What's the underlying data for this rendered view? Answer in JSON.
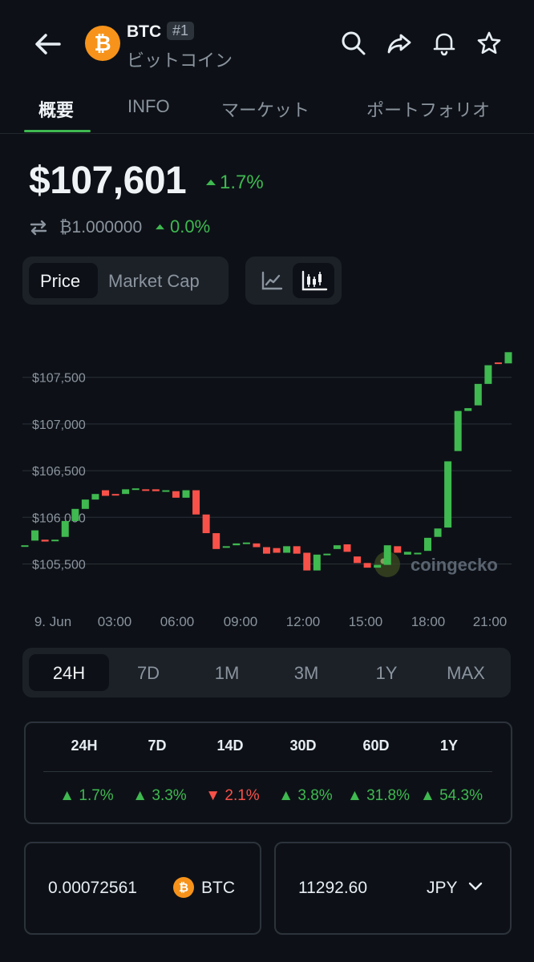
{
  "header": {
    "coin_logo": "₿",
    "symbol": "BTC",
    "rank": "#1",
    "name_jp": "ビットコイン",
    "icons": [
      "back-arrow-icon",
      "search-icon",
      "share-icon",
      "bell-icon",
      "star-icon"
    ]
  },
  "tabs": [
    {
      "label": "概要",
      "active": true
    },
    {
      "label": "INFO"
    },
    {
      "label": "マーケット"
    },
    {
      "label": "ポートフォリオ"
    }
  ],
  "price": {
    "value": "$107,601",
    "change": "1.7%",
    "btc_value": "₿1.000000",
    "btc_change": "0.0%"
  },
  "toggles": {
    "price_label": "Price",
    "market_cap_label": "Market Cap",
    "active_chart_type": "candlestick"
  },
  "colors": {
    "up": "#3fb950",
    "down": "#f85149",
    "coin": "#f7931a",
    "background": "#0d1117"
  },
  "chart_data": {
    "type": "candlestick",
    "ylabels": [
      "$107,500",
      "$107,000",
      "$106,500",
      "$106,000",
      "$105,500"
    ],
    "yticks": [
      107500,
      107000,
      106500,
      106000,
      105500
    ],
    "xlabels": [
      "9. Jun",
      "03:00",
      "06:00",
      "09:00",
      "12:00",
      "15:00",
      "18:00",
      "21:00"
    ],
    "ylim": [
      105100,
      107850
    ],
    "watermark": "coingecko",
    "candles": [
      [
        105700,
        105700
      ],
      [
        105750,
        105860
      ],
      [
        105760,
        105740
      ],
      [
        105760,
        105760
      ],
      [
        105790,
        105960
      ],
      [
        105960,
        106090
      ],
      [
        106090,
        106190
      ],
      [
        106190,
        106250
      ],
      [
        106290,
        106230
      ],
      [
        106250,
        106240
      ],
      [
        106250,
        106300
      ],
      [
        106300,
        106310
      ],
      [
        106300,
        106290
      ],
      [
        106300,
        106280
      ],
      [
        106290,
        106290
      ],
      [
        106280,
        106210
      ],
      [
        106210,
        106290
      ],
      [
        106290,
        106030
      ],
      [
        106030,
        105830
      ],
      [
        105830,
        105660
      ],
      [
        105690,
        105690
      ],
      [
        105700,
        105720
      ],
      [
        105720,
        105730
      ],
      [
        105720,
        105680
      ],
      [
        105680,
        105610
      ],
      [
        105670,
        105620
      ],
      [
        105620,
        105690
      ],
      [
        105690,
        105610
      ],
      [
        105620,
        105430
      ],
      [
        105430,
        105600
      ],
      [
        105600,
        105610
      ],
      [
        105660,
        105700
      ],
      [
        105710,
        105630
      ],
      [
        105580,
        105510
      ],
      [
        105510,
        105460
      ],
      [
        105460,
        105490
      ],
      [
        105490,
        105700
      ],
      [
        105690,
        105620
      ],
      [
        105600,
        105630
      ],
      [
        105620,
        105620
      ],
      [
        105640,
        105780
      ],
      [
        105790,
        105880
      ],
      [
        105890,
        106600
      ],
      [
        106710,
        107140
      ],
      [
        107140,
        107170
      ],
      [
        107200,
        107430
      ],
      [
        107430,
        107630
      ],
      [
        107660,
        107650
      ],
      [
        107650,
        107770
      ]
    ]
  },
  "ranges": [
    {
      "label": "24H",
      "active": true
    },
    {
      "label": "7D"
    },
    {
      "label": "1M"
    },
    {
      "label": "3M"
    },
    {
      "label": "1Y"
    },
    {
      "label": "MAX"
    }
  ],
  "performance": {
    "headers": [
      "24H",
      "7D",
      "14D",
      "30D",
      "60D",
      "1Y"
    ],
    "values": [
      {
        "value": "1.7%",
        "direction": "up"
      },
      {
        "value": "3.3%",
        "direction": "up"
      },
      {
        "value": "2.1%",
        "direction": "down"
      },
      {
        "value": "3.8%",
        "direction": "up"
      },
      {
        "value": "31.8%",
        "direction": "up"
      },
      {
        "value": "54.3%",
        "direction": "up"
      }
    ]
  },
  "converter": {
    "btc_amount": "0.00072561",
    "btc_symbol": "BTC",
    "btc_logo": "₿",
    "fiat_amount": "11292.60",
    "fiat_currency": "JPY"
  }
}
